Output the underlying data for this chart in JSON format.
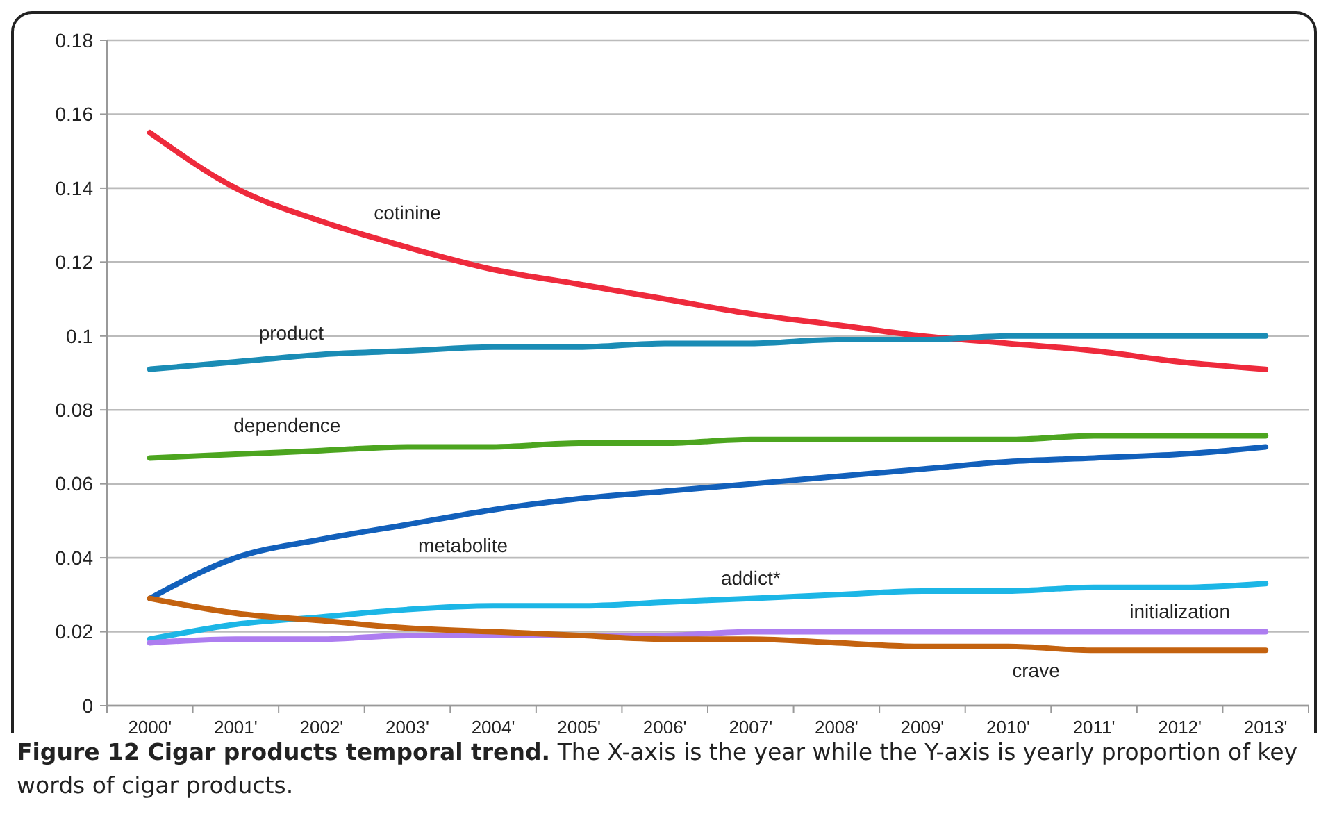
{
  "chart_data": {
    "type": "line",
    "title": "Figure 12 Cigar products temporal trend.",
    "subtitle": "The X-axis is the year while the Y-axis is yearly proportion of key words of cigar products.",
    "categories": [
      "2000'",
      "2001'",
      "2002'",
      "2003'",
      "2004'",
      "2005'",
      "2006'",
      "2007'",
      "2008'",
      "2009'",
      "2010'",
      "2011'",
      "2012'",
      "2013'"
    ],
    "ylim": [
      0,
      0.18
    ],
    "yticks": [
      0,
      0.02,
      0.04,
      0.06,
      0.08,
      0.1,
      0.12,
      0.14,
      0.16,
      0.18
    ],
    "grid": "y",
    "legend": false,
    "marker": "none",
    "line_style": "solid",
    "series": [
      {
        "name": "cotinine",
        "color": "#ee2a3c",
        "values": [
          0.155,
          0.14,
          0.131,
          0.124,
          0.118,
          0.114,
          0.11,
          0.106,
          0.103,
          0.1,
          0.098,
          0.096,
          0.093,
          0.091
        ]
      },
      {
        "name": "product",
        "color": "#1a8cb5",
        "values": [
          0.091,
          0.093,
          0.095,
          0.096,
          0.097,
          0.097,
          0.098,
          0.098,
          0.099,
          0.099,
          0.1,
          0.1,
          0.1,
          0.1
        ]
      },
      {
        "name": "dependence",
        "color": "#4ca51f",
        "values": [
          0.067,
          0.068,
          0.069,
          0.07,
          0.07,
          0.071,
          0.071,
          0.072,
          0.072,
          0.072,
          0.072,
          0.073,
          0.073,
          0.073
        ]
      },
      {
        "name": "metabolite",
        "color": "#1260bb",
        "values": [
          0.029,
          0.04,
          0.045,
          0.049,
          0.053,
          0.056,
          0.058,
          0.06,
          0.062,
          0.064,
          0.066,
          0.067,
          0.068,
          0.07
        ]
      },
      {
        "name": "addict*",
        "color": "#1cb6e6",
        "values": [
          0.018,
          0.022,
          0.024,
          0.026,
          0.027,
          0.027,
          0.028,
          0.029,
          0.03,
          0.031,
          0.031,
          0.032,
          0.032,
          0.033
        ]
      },
      {
        "name": "initialization",
        "color": "#ad7df0",
        "values": [
          0.017,
          0.018,
          0.018,
          0.019,
          0.019,
          0.019,
          0.019,
          0.02,
          0.02,
          0.02,
          0.02,
          0.02,
          0.02,
          0.02
        ]
      },
      {
        "name": "crave",
        "color": "#c4620f",
        "values": [
          0.029,
          0.025,
          0.023,
          0.021,
          0.02,
          0.019,
          0.018,
          0.018,
          0.017,
          0.016,
          0.016,
          0.015,
          0.015,
          0.015
        ]
      }
    ]
  }
}
